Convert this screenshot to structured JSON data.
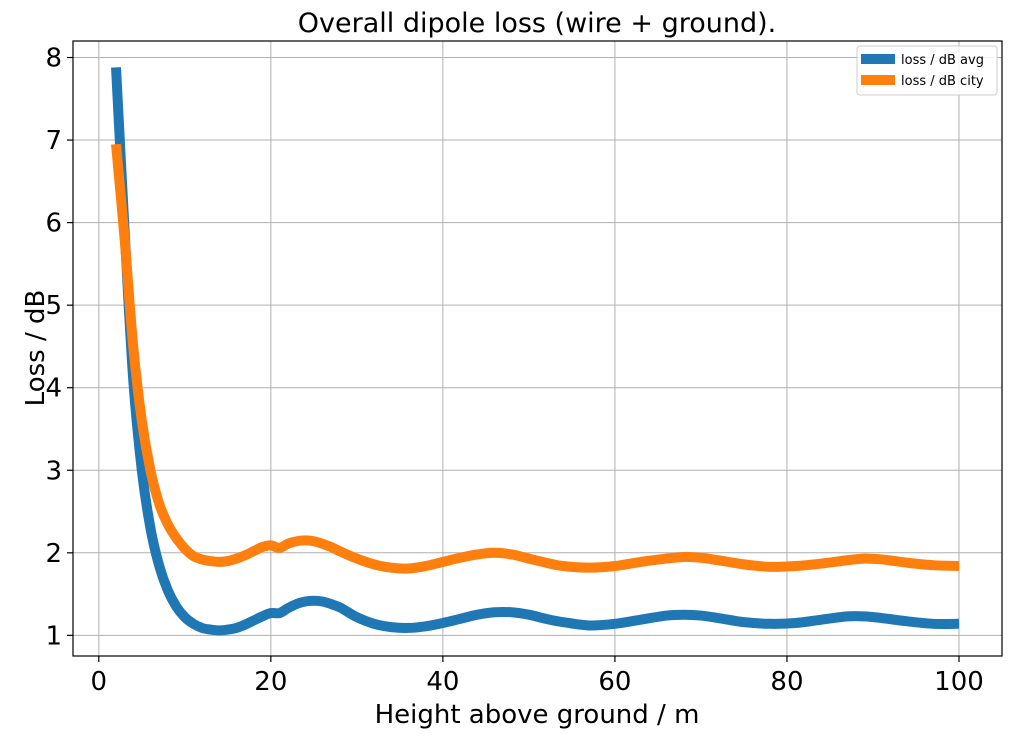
{
  "chart_data": {
    "type": "line",
    "title": "Overall dipole loss (wire + ground).",
    "xlabel": "Height above ground / m",
    "ylabel": "Loss / dB",
    "xlim": [
      -3,
      105
    ],
    "ylim": [
      0.75,
      8.2
    ],
    "xticks": [
      0,
      20,
      40,
      60,
      80,
      100
    ],
    "yticks": [
      1,
      2,
      3,
      4,
      5,
      6,
      7,
      8
    ],
    "xtick_labels": [
      "0",
      "20",
      "40",
      "60",
      "80",
      "100"
    ],
    "ytick_labels": [
      "1",
      "2",
      "3",
      "4",
      "5",
      "6",
      "7",
      "8"
    ],
    "grid": true,
    "legend_position": "top-right",
    "series": [
      {
        "name": "loss / dB avg",
        "color": "#1f77b4",
        "x": [
          2,
          3,
          4,
          5,
          6,
          7,
          8,
          9,
          10,
          11,
          12,
          13,
          14,
          15,
          16,
          17,
          18,
          19,
          20,
          21,
          22,
          23,
          24,
          25,
          26,
          27,
          28,
          29,
          30,
          32,
          34,
          36,
          38,
          40,
          42,
          44,
          46,
          48,
          50,
          52,
          54,
          57,
          60,
          63,
          66,
          68,
          70,
          72,
          75,
          78,
          81,
          84,
          87,
          89,
          91,
          94,
          97,
          100
        ],
        "y": [
          7.88,
          5.9,
          4.1,
          3.0,
          2.3,
          1.85,
          1.55,
          1.35,
          1.22,
          1.14,
          1.09,
          1.07,
          1.06,
          1.07,
          1.09,
          1.13,
          1.18,
          1.23,
          1.27,
          1.27,
          1.33,
          1.38,
          1.41,
          1.42,
          1.41,
          1.38,
          1.34,
          1.28,
          1.22,
          1.14,
          1.1,
          1.09,
          1.11,
          1.15,
          1.2,
          1.25,
          1.28,
          1.28,
          1.25,
          1.2,
          1.16,
          1.12,
          1.14,
          1.19,
          1.24,
          1.25,
          1.24,
          1.21,
          1.16,
          1.14,
          1.15,
          1.19,
          1.23,
          1.23,
          1.21,
          1.17,
          1.14,
          1.14
        ]
      },
      {
        "name": "loss / dB city",
        "color": "#ff7f0e",
        "x": [
          2,
          3,
          4,
          5,
          6,
          7,
          8,
          9,
          10,
          11,
          12,
          13,
          14,
          15,
          16,
          17,
          18,
          19,
          20,
          21,
          22,
          23,
          24,
          25,
          26,
          27,
          28,
          30,
          32,
          34,
          36,
          38,
          40,
          42,
          44,
          46,
          48,
          50,
          52,
          54,
          57,
          60,
          63,
          66,
          68,
          70,
          72,
          75,
          78,
          81,
          84,
          87,
          89,
          91,
          94,
          97,
          100
        ],
        "y": [
          6.95,
          5.8,
          4.5,
          3.6,
          3.0,
          2.6,
          2.35,
          2.18,
          2.05,
          1.96,
          1.92,
          1.9,
          1.89,
          1.9,
          1.93,
          1.97,
          2.02,
          2.07,
          2.09,
          2.06,
          2.11,
          2.14,
          2.15,
          2.14,
          2.11,
          2.07,
          2.02,
          1.93,
          1.86,
          1.82,
          1.81,
          1.84,
          1.89,
          1.94,
          1.98,
          2.0,
          1.98,
          1.93,
          1.88,
          1.84,
          1.82,
          1.84,
          1.89,
          1.93,
          1.95,
          1.94,
          1.91,
          1.86,
          1.83,
          1.84,
          1.87,
          1.91,
          1.93,
          1.92,
          1.88,
          1.85,
          1.84
        ]
      }
    ]
  }
}
